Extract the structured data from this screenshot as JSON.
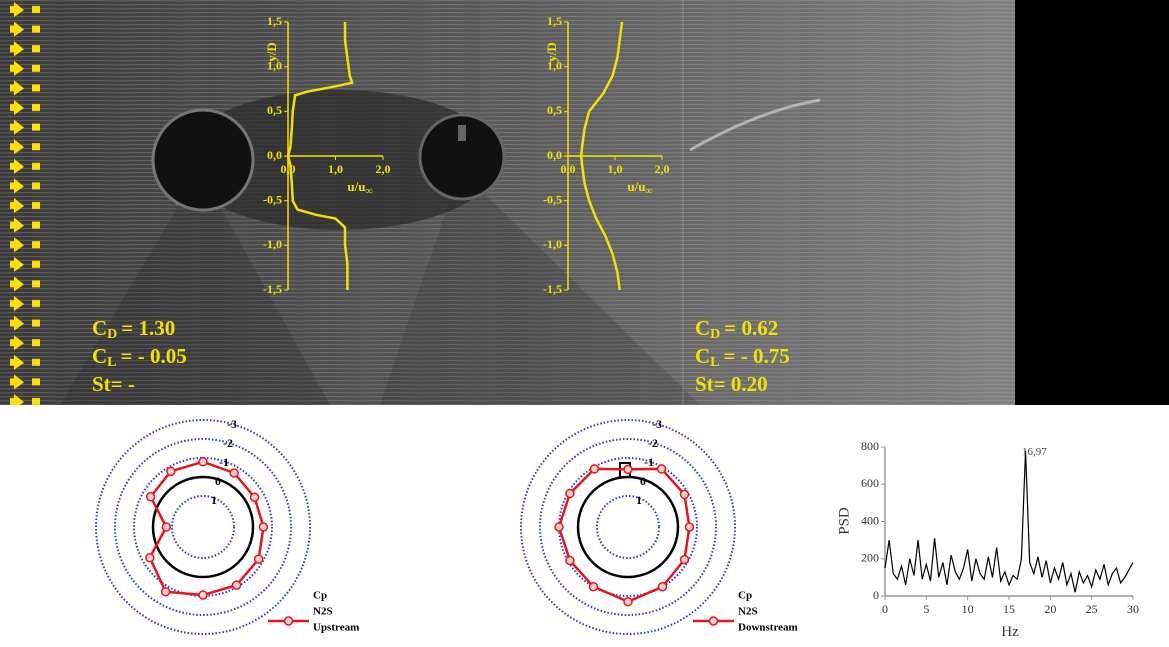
{
  "chart_data": [
    {
      "type": "line",
      "y_label": "y/D",
      "x_label": {
        "text": "u/u",
        "subscript": "∞"
      },
      "xlim": [
        0,
        2
      ],
      "xticks": [
        {
          "value": 0,
          "label": "0,0"
        },
        {
          "value": 1,
          "label": "1,0"
        },
        {
          "value": 2,
          "label": "2,0"
        }
      ],
      "ylim": [
        -1.5,
        1.5
      ],
      "yticks": [
        {
          "value": -1.5,
          "label": "-1,5"
        },
        {
          "value": -1,
          "label": "-1,0"
        },
        {
          "value": -0.5,
          "label": "-0,5"
        },
        {
          "value": 0,
          "label": "0,0"
        },
        {
          "value": 0.5,
          "label": "0,5"
        },
        {
          "value": 1,
          "label": "1,0"
        },
        {
          "value": 1.5,
          "label": "1,5"
        }
      ],
      "color": "#f5e100",
      "x": [
        1.2,
        1.2,
        1.25,
        1.3,
        1.35,
        1.0,
        0.4,
        0.15,
        0.1,
        0.08,
        0.05,
        0.0,
        0.05,
        0.08,
        0.1,
        0.2,
        0.6,
        1.0,
        1.2,
        1.2,
        1.25,
        1.25
      ],
      "values": [
        1.5,
        1.3,
        1.1,
        0.9,
        0.82,
        0.78,
        0.72,
        0.68,
        0.5,
        0.3,
        0.1,
        0,
        -0.1,
        -0.3,
        -0.5,
        -0.6,
        -0.66,
        -0.7,
        -0.8,
        -1.0,
        -1.2,
        -1.5
      ],
      "annotations": [
        {
          "symbol": "C",
          "subscript": "D",
          "text": "= 1.30"
        },
        {
          "symbol": "C",
          "subscript": "L",
          "text": "= - 0.05"
        },
        {
          "symbol": "St= -"
        }
      ]
    },
    {
      "type": "line",
      "y_label": "y/D",
      "x_label": {
        "text": "u/u",
        "subscript": "∞"
      },
      "xlim": [
        0,
        2
      ],
      "xticks": [
        {
          "value": 0,
          "label": "0,0"
        },
        {
          "value": 1,
          "label": "1,0"
        },
        {
          "value": 2,
          "label": "2,0"
        }
      ],
      "ylim": [
        -1.5,
        1.5
      ],
      "yticks": [
        {
          "value": -1.5,
          "label": "-1,5"
        },
        {
          "value": -1,
          "label": "-1,0"
        },
        {
          "value": -0.5,
          "label": "-0,5"
        },
        {
          "value": 0,
          "label": "0,0"
        },
        {
          "value": 0.5,
          "label": "0,5"
        },
        {
          "value": 1,
          "label": "1,0"
        },
        {
          "value": 1.5,
          "label": "1,5"
        }
      ],
      "color": "#f5e100",
      "x": [
        1.15,
        1.1,
        1.05,
        0.95,
        0.75,
        0.45,
        0.35,
        0.3,
        0.28,
        0.3,
        0.35,
        0.45,
        0.6,
        0.8,
        0.95,
        1.05,
        1.1
      ],
      "values": [
        1.5,
        1.3,
        1.1,
        0.9,
        0.7,
        0.5,
        0.3,
        0.1,
        0,
        -0.1,
        -0.3,
        -0.5,
        -0.7,
        -0.9,
        -1.1,
        -1.3,
        -1.5
      ],
      "annotations": [
        {
          "symbol": "C",
          "subscript": "D",
          "text": "= 0.62"
        },
        {
          "symbol": "C",
          "subscript": "L",
          "text": "= - 0.75"
        },
        {
          "symbol": "St= 0.20"
        }
      ]
    },
    {
      "type": "radar",
      "legend_title": "Cp",
      "rlim": [
        1,
        -3
      ],
      "rticks": [
        -3,
        -2,
        -1,
        0,
        1
      ],
      "grid_color": "#2b35d6",
      "zero_color": "#000000",
      "series": [
        {
          "name": [
            "N2S",
            "Upstream"
          ],
          "color": "#e8141c",
          "values": [
            -0.8,
            -0.65,
            -0.5,
            -0.55,
            -0.75,
            -0.9,
            -0.95,
            -1.3,
            -0.6,
            0.7,
            -0.55,
            -0.75
          ]
        }
      ]
    },
    {
      "type": "radar",
      "legend_title": "Cp",
      "rlim": [
        1,
        -3
      ],
      "rticks": [
        -3,
        -2,
        -1,
        0,
        1
      ],
      "grid_color": "#2b35d6",
      "zero_color": "#000000",
      "series": [
        {
          "name": [
            "N2S",
            "Downstream"
          ],
          "color": "#e8141c",
          "values": [
            -0.4,
            -0.9,
            -0.8,
            -0.6,
            -0.8,
            -1.0,
            -1.3,
            -1.0,
            -0.9,
            -1.0,
            -0.9,
            -0.9
          ]
        }
      ]
    },
    {
      "type": "line",
      "y_label": "PSD",
      "x_label": {
        "text": "Hz"
      },
      "xlim": [
        0,
        30
      ],
      "xticks": [
        0,
        5,
        10,
        15,
        20,
        25,
        30
      ],
      "ylim": [
        0,
        800
      ],
      "yticks": [
        0,
        200,
        400,
        600,
        800
      ],
      "color": "#000000",
      "x": [
        0,
        0.5,
        1,
        1.5,
        2,
        2.5,
        3,
        3.5,
        4,
        4.5,
        5,
        5.5,
        6,
        6.5,
        7,
        7.5,
        8,
        8.5,
        9,
        9.5,
        10,
        10.5,
        11,
        11.5,
        12,
        12.5,
        13,
        13.5,
        14,
        14.5,
        15,
        15.5,
        16,
        16.5,
        17,
        17.5,
        18,
        18.5,
        19,
        19.5,
        20,
        20.5,
        21,
        21.5,
        22,
        22.5,
        23,
        23.5,
        24,
        24.5,
        25,
        25.5,
        26,
        26.5,
        27,
        27.5,
        28,
        28.5,
        29,
        29.5,
        30
      ],
      "values": [
        150,
        300,
        120,
        90,
        160,
        60,
        200,
        110,
        300,
        90,
        170,
        80,
        310,
        100,
        180,
        60,
        220,
        130,
        90,
        150,
        250,
        80,
        200,
        120,
        90,
        210,
        100,
        260,
        80,
        130,
        60,
        110,
        90,
        200,
        780,
        180,
        120,
        210,
        100,
        190,
        70,
        150,
        90,
        180,
        60,
        120,
        20,
        130,
        70,
        110,
        50,
        140,
        90,
        170,
        60,
        120,
        150,
        70,
        100,
        140,
        180
      ],
      "annotations": [
        {
          "symbol": "16,97"
        }
      ]
    }
  ]
}
